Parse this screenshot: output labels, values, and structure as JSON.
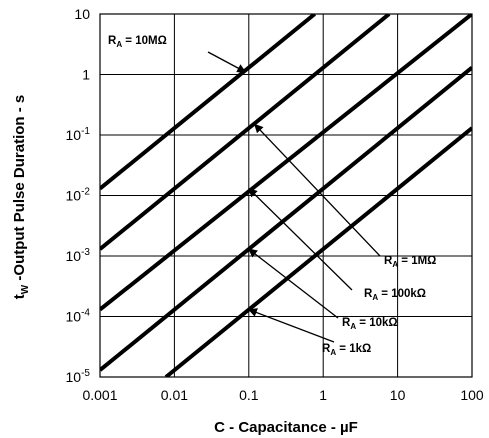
{
  "chart_data": {
    "type": "line",
    "x_scale": "log",
    "y_scale": "log",
    "xlim": [
      0.001,
      100
    ],
    "ylim": [
      1e-05,
      10
    ],
    "grid": true,
    "xlabel": "C - Capacitance - µF",
    "ylabel": {
      "main": "t",
      "sub": "W",
      "rest": " -Output Pulse Duration - s"
    },
    "x_ticks": [
      {
        "value": 0.001,
        "label": "0.001"
      },
      {
        "value": 0.01,
        "label": "0.01"
      },
      {
        "value": 0.1,
        "label": "0.1"
      },
      {
        "value": 1,
        "label": "1"
      },
      {
        "value": 10,
        "label": "10"
      },
      {
        "value": 100,
        "label": "100"
      }
    ],
    "y_ticks": [
      {
        "value": 1e-05,
        "base": "10",
        "exp": "-5"
      },
      {
        "value": 0.0001,
        "base": "10",
        "exp": "-4"
      },
      {
        "value": 0.001,
        "base": "10",
        "exp": "-3"
      },
      {
        "value": 0.01,
        "base": "10",
        "exp": "-2"
      },
      {
        "value": 0.1,
        "base": "10",
        "exp": "-1"
      },
      {
        "value": 1,
        "base": "1",
        "exp": ""
      },
      {
        "value": 10,
        "base": "10",
        "exp": ""
      }
    ],
    "series": [
      {
        "name": "R = 1kΩ",
        "label": {
          "pre": "R",
          "sub": "A",
          "post": " = 1kΩ"
        },
        "points": [
          [
            0.0077,
            1e-05
          ],
          [
            100,
            0.13
          ]
        ],
        "arrow_to": [
          0.1,
          0.00013
        ]
      },
      {
        "name": "R = 10kΩ",
        "label": {
          "pre": "R",
          "sub": "A",
          "post": " = 10kΩ"
        },
        "points": [
          [
            0.001,
            1.3e-05
          ],
          [
            100,
            1.3
          ]
        ],
        "arrow_to": [
          0.1,
          0.0013
        ]
      },
      {
        "name": "R = 100kΩ",
        "label": {
          "pre": "R",
          "sub": "A",
          "post": " = 100kΩ"
        },
        "points": [
          [
            0.001,
            0.00013
          ],
          [
            100,
            10
          ]
        ],
        "arrow_to": [
          0.1,
          0.013
        ]
      },
      {
        "name": "R = 1MΩ",
        "label": {
          "pre": "R",
          "sub": "A",
          "post": " = 1MΩ"
        },
        "points": [
          [
            0.001,
            0.0013
          ],
          [
            7.7,
            10
          ]
        ],
        "arrow_to": [
          0.12,
          0.15
        ]
      },
      {
        "name": "R = 10MΩ",
        "label": {
          "pre": "R",
          "sub": "A",
          "post": " = 10MΩ"
        },
        "points": [
          [
            0.001,
            0.013
          ],
          [
            0.77,
            10
          ]
        ],
        "arrow_to": [
          0.09,
          1.1
        ]
      }
    ]
  }
}
